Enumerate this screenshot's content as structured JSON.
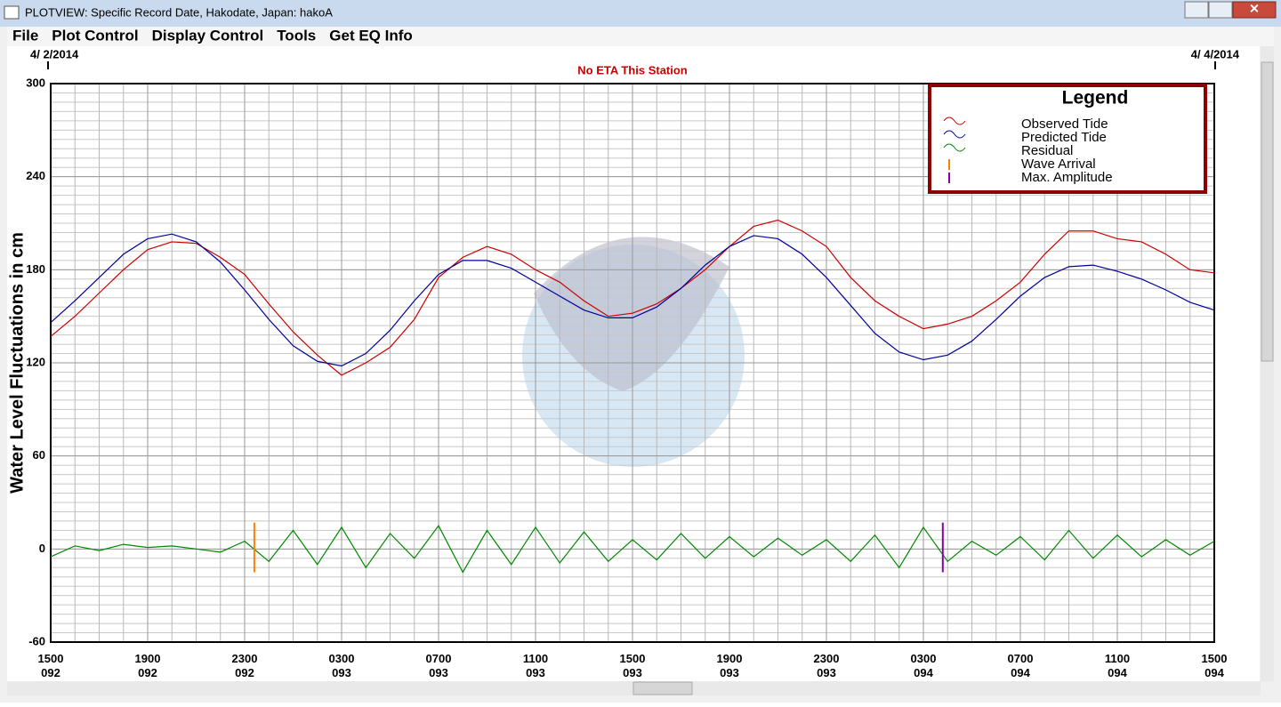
{
  "window": {
    "title": "PLOTVIEW: Specific Record Date, Hakodate, Japan: hakoA",
    "menu": [
      "File",
      "Plot Control",
      "Display Control",
      "Tools",
      "Get EQ Info"
    ]
  },
  "chart_data": {
    "type": "line",
    "subtitle": "No ETA This Station",
    "date_labels": [
      "4/ 2/2014",
      "4/ 4/2014"
    ],
    "y_label": "Water Level Fluctuations in cm",
    "legend_title": "Legend",
    "legend": "top-right",
    "grid": true,
    "x": [
      0,
      1,
      2,
      3,
      4,
      5,
      6,
      7,
      8,
      9,
      10,
      11,
      12,
      13,
      14,
      15,
      16,
      17,
      18,
      19,
      20,
      21,
      22,
      23,
      24,
      25,
      26,
      27,
      28,
      29,
      30,
      31,
      32,
      33,
      34,
      35,
      36,
      37,
      38,
      39,
      40,
      41,
      42,
      43,
      44,
      45,
      46,
      47,
      48
    ],
    "xlim": [
      0,
      48
    ],
    "xticks": [
      {
        "value": 0,
        "label": "1500 092"
      },
      {
        "value": 4,
        "label": "1900 092"
      },
      {
        "value": 8,
        "label": "2300 092"
      },
      {
        "value": 12,
        "label": "0300 093"
      },
      {
        "value": 16,
        "label": "0700 093"
      },
      {
        "value": 20,
        "label": "1100 093"
      },
      {
        "value": 24,
        "label": "1500 093"
      },
      {
        "value": 28,
        "label": "1900 093"
      },
      {
        "value": 32,
        "label": "2300 093"
      },
      {
        "value": 36,
        "label": "0300 094"
      },
      {
        "value": 40,
        "label": "0700 094"
      },
      {
        "value": 44,
        "label": "1100 094"
      },
      {
        "value": 48,
        "label": "1500 094"
      }
    ],
    "ylim": [
      -60,
      300
    ],
    "yticks": [
      -60,
      0,
      60,
      120,
      180,
      240,
      300
    ],
    "series": [
      {
        "name": "Observed Tide",
        "color": "#cc0000",
        "values": [
          137,
          150,
          165,
          180,
          193,
          198,
          197,
          188,
          177,
          158,
          140,
          125,
          112,
          120,
          130,
          148,
          175,
          188,
          195,
          190,
          180,
          172,
          160,
          150,
          152,
          158,
          168,
          180,
          195,
          208,
          212,
          205,
          195,
          175,
          160,
          150,
          142,
          145,
          150,
          160,
          172,
          190,
          205,
          205,
          200,
          198,
          190,
          180,
          178
        ]
      },
      {
        "name": "Predicted Tide",
        "color": "#000099",
        "values": [
          146,
          160,
          175,
          190,
          200,
          203,
          198,
          185,
          167,
          148,
          131,
          121,
          118,
          126,
          141,
          160,
          177,
          186,
          186,
          181,
          172,
          163,
          154,
          149,
          149,
          156,
          168,
          183,
          195,
          202,
          200,
          190,
          175,
          157,
          139,
          127,
          122,
          125,
          134,
          148,
          163,
          175,
          182,
          183,
          179,
          174,
          167,
          159,
          154
        ]
      },
      {
        "name": "Residual",
        "color": "#008800",
        "values": [
          -5,
          2,
          -1,
          3,
          1,
          2,
          0,
          -2,
          5,
          -8,
          12,
          -10,
          14,
          -12,
          10,
          -6,
          15,
          -15,
          12,
          -10,
          14,
          -9,
          11,
          -8,
          6,
          -7,
          10,
          -6,
          8,
          -5,
          7,
          -4,
          6,
          -8,
          9,
          -12,
          14,
          -8,
          5,
          -4,
          8,
          -7,
          12,
          -6,
          9,
          -5,
          6,
          -4,
          5
        ]
      }
    ],
    "markers": [
      {
        "name": "Wave Arrival",
        "color": "#ff8000",
        "x": 8.4
      },
      {
        "name": "Max. Amplitude",
        "color": "#8800aa",
        "x": 36.8
      }
    ]
  }
}
